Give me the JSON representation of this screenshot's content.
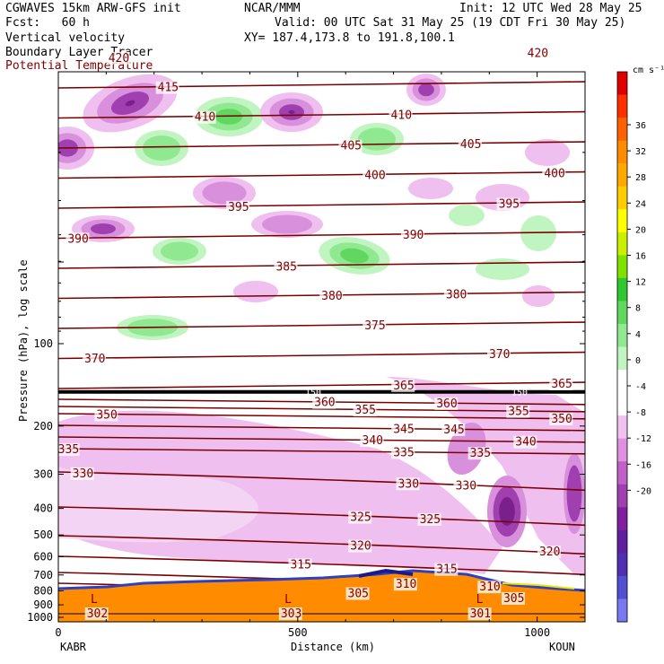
{
  "header": {
    "model": "CGWAVES 15km ARW-GFS init",
    "fcst": "Fcst:   60 h",
    "field1": "Vertical velocity",
    "field2": "Boundary Layer Tracer",
    "field3": "Potential Temperature",
    "org": "NCAR/MMM",
    "init": "Init: 12 UTC Wed 28 May 25",
    "valid": "Valid: 00 UTC Sat 31 May 25 (19 CDT Fri 30 May 25)",
    "xy": "XY= 187.4,173.8 to 191.8,100.1",
    "field3_color": "#800000"
  },
  "chart_data": {
    "type": "heatmap",
    "description_fields": [
      "Vertical velocity",
      "Boundary Layer Tracer",
      "Potential Temperature"
    ],
    "ylabel": "Pressure (hPa), log scale",
    "xlabel": "Distance (km)",
    "y_ticks": [
      100,
      200,
      300,
      400,
      500,
      600,
      700,
      800,
      900,
      1000
    ],
    "x_ticks": [
      0,
      500,
      1000
    ],
    "x_range": [
      0,
      1100
    ],
    "y_range_hpa": [
      1000,
      10
    ],
    "left_station": "KABR",
    "right_station": "KOUN",
    "colorbar": {
      "units": "cm s⁻¹",
      "ticks": [
        36,
        32,
        28,
        24,
        20,
        16,
        12,
        8,
        4,
        0,
        -4,
        -8,
        -12,
        -16,
        -20
      ],
      "colors": [
        "#e00000",
        "#ff3000",
        "#ff6000",
        "#ff8c00",
        "#ffa800",
        "#ffcc00",
        "#ffff00",
        "#c8f000",
        "#80e000",
        "#30c830",
        "#60d860",
        "#90e890",
        "#c0f4c0",
        "#ffffff",
        "#ffffff",
        "#f0c0f0",
        "#e090e0",
        "#c060c8",
        "#a040b0",
        "#8020a0",
        "#6020a0",
        "#5030b0",
        "#5050d0",
        "#7878f0"
      ]
    },
    "theta_isentropes": [
      {
        "value": 420,
        "labels": [
          {
            "x": 125
          },
          {
            "x": 1000
          }
        ]
      },
      {
        "value": 415,
        "labels": [
          {
            "x": 228
          }
        ]
      },
      {
        "value": 410,
        "labels": [
          {
            "x": 305
          },
          {
            "x": 715
          }
        ]
      },
      {
        "value": 405,
        "labels": [
          {
            "x": 610
          },
          {
            "x": 860
          }
        ]
      },
      {
        "value": 400,
        "labels": [
          {
            "x": 660
          },
          {
            "x": 1035
          }
        ]
      },
      {
        "value": 395,
        "labels": [
          {
            "x": 375
          },
          {
            "x": 940
          }
        ]
      },
      {
        "value": 390,
        "labels": [
          {
            "x": 40
          },
          {
            "x": 740
          }
        ]
      },
      {
        "value": 385,
        "labels": [
          {
            "x": 475
          }
        ]
      },
      {
        "value": 380,
        "labels": [
          {
            "x": 570
          },
          {
            "x": 830
          }
        ]
      },
      {
        "value": 375,
        "labels": [
          {
            "x": 660
          }
        ]
      },
      {
        "value": 370,
        "labels": [
          {
            "x": 75
          },
          {
            "x": 920
          }
        ]
      },
      {
        "value": 365,
        "labels": [
          {
            "x": 720
          },
          {
            "x": 1050
          }
        ]
      },
      {
        "value": 360,
        "labels": [
          {
            "x": 555
          },
          {
            "x": 810
          }
        ]
      },
      {
        "value": 355,
        "labels": [
          {
            "x": 640
          },
          {
            "x": 960
          }
        ]
      },
      {
        "value": 350,
        "labels": [
          {
            "x": 100
          },
          {
            "x": 1050
          }
        ]
      },
      {
        "value": 345,
        "labels": [
          {
            "x": 720
          },
          {
            "x": 825
          }
        ]
      },
      {
        "value": 340,
        "labels": [
          {
            "x": 655
          },
          {
            "x": 975
          }
        ]
      },
      {
        "value": 335,
        "labels": [
          {
            "x": 20
          },
          {
            "x": 720
          },
          {
            "x": 880
          }
        ]
      },
      {
        "value": 330,
        "labels": [
          {
            "x": 50
          },
          {
            "x": 730
          },
          {
            "x": 850
          }
        ]
      },
      {
        "value": 325,
        "labels": [
          {
            "x": 630
          },
          {
            "x": 775
          }
        ]
      },
      {
        "value": 320,
        "labels": [
          {
            "x": 630
          },
          {
            "x": 1025
          }
        ]
      },
      {
        "value": 315,
        "labels": [
          {
            "x": 505
          },
          {
            "x": 810
          }
        ]
      },
      {
        "value": 310,
        "labels": [
          {
            "x": 725
          },
          {
            "x": 900
          }
        ]
      },
      {
        "value": 305,
        "labels": [
          {
            "x": 625
          },
          {
            "x": 950
          }
        ]
      },
      {
        "value": 303,
        "labels": [
          {
            "x": 485
          }
        ]
      },
      {
        "value": 302,
        "labels": [
          {
            "x": 80
          }
        ]
      },
      {
        "value": 301,
        "labels": [
          {
            "x": 880
          }
        ]
      }
    ],
    "lows": [
      {
        "x": 75,
        "label": "L"
      },
      {
        "x": 480,
        "label": "L"
      },
      {
        "x": 880,
        "label": "L"
      }
    ],
    "pressure_150_line_label": "150"
  }
}
